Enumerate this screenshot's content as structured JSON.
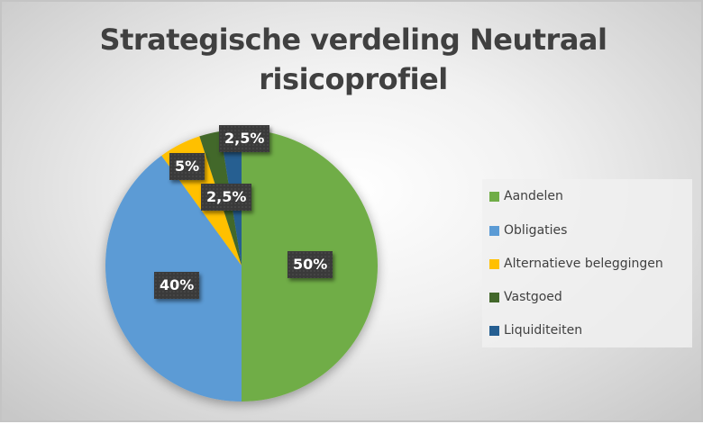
{
  "chart": {
    "title_line1": "Strategische verdeling Neutraal",
    "title_line2": "risicoprofiel"
  },
  "chart_data": {
    "type": "pie",
    "title": "Strategische verdeling Neutraal risicoprofiel",
    "categories": [
      "Aandelen",
      "Obligaties",
      "Alternatieve beleggingen",
      "Vastgoed",
      "Liquiditeiten"
    ],
    "values": [
      50,
      40,
      5,
      2.5,
      2.5
    ],
    "data_labels": [
      "50%",
      "40%",
      "5%",
      "2,5%",
      "2,5%"
    ],
    "colors": [
      "#70ad47",
      "#5b9bd5",
      "#ffc000",
      "#43682b",
      "#255e91"
    ],
    "start_angle_deg": 0,
    "direction": "clockwise",
    "legend_position": "right"
  },
  "legend": {
    "items": [
      {
        "label": "Aandelen",
        "color": "#70ad47"
      },
      {
        "label": "Obligaties",
        "color": "#5b9bd5"
      },
      {
        "label": "Alternatieve beleggingen",
        "color": "#ffc000"
      },
      {
        "label": "Vastgoed",
        "color": "#43682b"
      },
      {
        "label": "Liquiditeiten",
        "color": "#255e91"
      }
    ]
  },
  "labels": {
    "aandelen": "50%",
    "obligaties": "40%",
    "alternatieve": "5%",
    "vastgoed": "2,5%",
    "liquiditeiten": "2,5%"
  }
}
